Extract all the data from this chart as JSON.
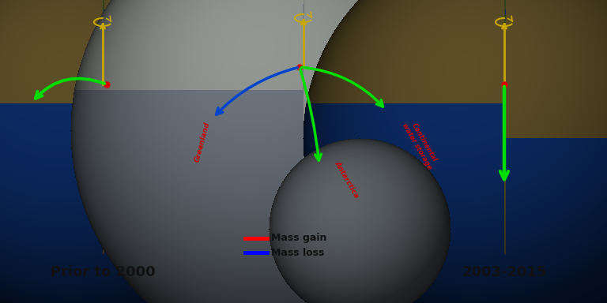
{
  "background_color": "#ffffff",
  "fig_width": 7.68,
  "fig_height": 3.84,
  "title_left": "Prior to 2000",
  "title_right": "2003-2015",
  "legend_items": [
    {
      "label": "Mass gain",
      "color": "#ff0000"
    },
    {
      "label": "Mass loss",
      "color": "#0000ff"
    }
  ],
  "spin_axis_color": "#c8a800",
  "arrow_green": "#00dd00",
  "arrow_blue": "#0044cc",
  "annotation_color": "#cc0000",
  "dot_color": "#dd0000",
  "annotation_greenland": "Greenland",
  "annotation_antarctica": "Antarctica",
  "annotation_water": "Continental\nwater storage"
}
